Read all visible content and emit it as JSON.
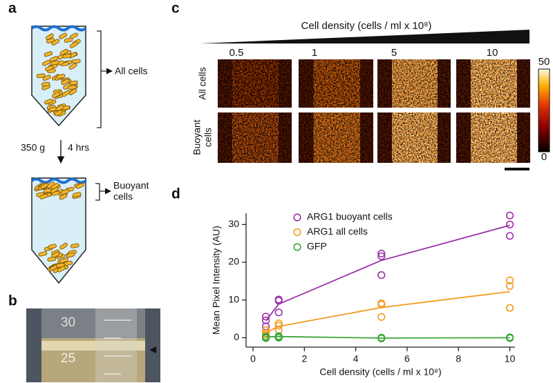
{
  "panels": {
    "a": {
      "label": "a",
      "all_cells": "All cells",
      "centrifuge_speed": "350 g",
      "centrifuge_time": "4 hrs",
      "buoyant_cells": [
        "Buoyant",
        "cells"
      ]
    },
    "b": {
      "label": "b",
      "tube_marks": [
        "30",
        "25"
      ]
    },
    "c": {
      "label": "c",
      "title": "Cell density (cells / ml x 10⁸)",
      "columns": [
        "0.5",
        "1",
        "5",
        "10"
      ],
      "rows": [
        [
          "All cells"
        ],
        [
          "Buoyant",
          "cells"
        ]
      ],
      "colorbar_ticks": [
        "50",
        "0"
      ]
    },
    "d": {
      "label": "d"
    }
  },
  "chart_data": {
    "type": "scatter",
    "x_label": "Cell density (cells / ml x 10⁸)",
    "y_label": "Mean Pixel Intensity (AU)",
    "xlim": [
      -0.27,
      10.2
    ],
    "xticks": [
      0,
      2,
      4,
      6,
      8,
      10
    ],
    "ylim": [
      -2.5,
      33
    ],
    "yticks": [
      0,
      10,
      20,
      30
    ],
    "legend": "upper left",
    "series": [
      {
        "name": "ARG1 buoyant cells",
        "color": "#9b2fa8",
        "x": [
          0.5,
          0.5,
          0.5,
          1,
          1,
          1,
          5,
          5,
          5,
          10,
          10,
          10
        ],
        "values": [
          5.6,
          4.6,
          3.0,
          10.1,
          9.8,
          6.7,
          22.3,
          21.6,
          16.6,
          32.4,
          30.0,
          27.0
        ],
        "fit": {
          "x": [
            0.5,
            1,
            5,
            10
          ],
          "values": [
            4.5,
            8.9,
            20.5,
            29.8
          ]
        }
      },
      {
        "name": "ARG1 all cells",
        "color": "#f39a1e",
        "x": [
          0.5,
          0.5,
          0.5,
          1,
          1,
          1,
          5,
          5,
          5,
          10,
          10,
          10
        ],
        "values": [
          2.0,
          1.2,
          0.8,
          3.8,
          3.2,
          2.0,
          9.1,
          8.8,
          5.5,
          15.2,
          13.7,
          7.9
        ],
        "fit": {
          "x": [
            0.5,
            1,
            5,
            10
          ],
          "values": [
            1.3,
            3.0,
            8.0,
            12.2
          ]
        }
      },
      {
        "name": "GFP",
        "color": "#3aa635",
        "x": [
          0.5,
          0.5,
          0.5,
          1,
          1,
          1,
          5,
          5,
          5,
          10,
          10,
          10
        ],
        "values": [
          0.3,
          0.1,
          -0.1,
          0.4,
          0.2,
          0.0,
          0.0,
          -0.1,
          -0.2,
          0.1,
          0.0,
          -0.1
        ],
        "fit": {
          "x": [
            0.5,
            1,
            5,
            10
          ],
          "values": [
            0.2,
            0.3,
            -0.1,
            0.0
          ]
        }
      }
    ]
  }
}
